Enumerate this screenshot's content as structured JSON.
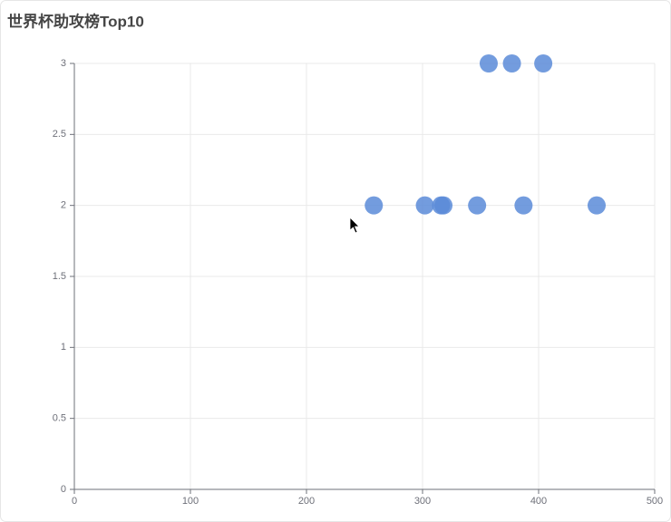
{
  "chart_data": {
    "type": "scatter",
    "title": "世界杯助攻榜Top10",
    "series": [
      {
        "color": "#5b8bd8",
        "x": [
          357,
          377,
          404,
          258,
          302,
          316,
          318,
          347,
          387,
          450
        ],
        "values": [
          3,
          3,
          3,
          2,
          2,
          2,
          2,
          2,
          2,
          2
        ]
      }
    ],
    "xlim": [
      0,
      500
    ],
    "xticks": [
      0,
      100,
      200,
      300,
      400,
      500
    ],
    "ylim": [
      0,
      3
    ],
    "yticks": [
      0,
      0.5,
      1,
      1.5,
      2,
      2.5,
      3
    ],
    "grid": true
  }
}
